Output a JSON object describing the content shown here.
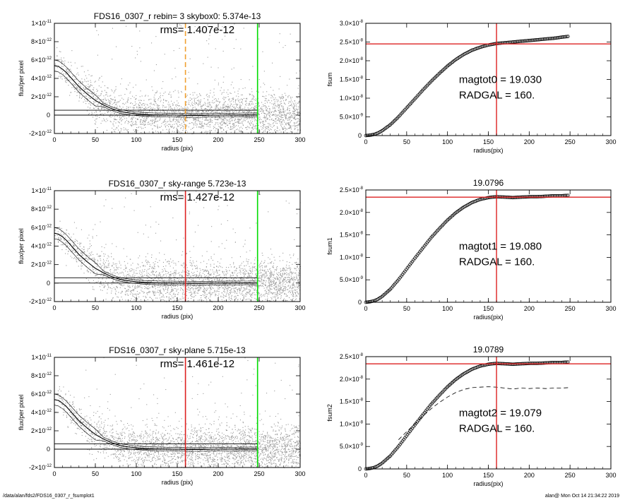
{
  "footer": {
    "path": "/data/alan/fds2/FDS16_0307_r_fsumplot1",
    "user_time": "alan@  Mon Oct 14 21:34:22 2019"
  },
  "colors": {
    "points": "#9a9a9a",
    "profile": "#000000",
    "sky_line": "#000000",
    "green_line": "#00dd00",
    "red_line": "#dd2222",
    "orange_dash": "#f0a030"
  },
  "chart_data": [
    {
      "type": "scatter",
      "title": "FDS16_0307_r rebin= 3    skybox0:  5.374e-13",
      "annotation": "rms= 1.407e-12",
      "xlabel": "radius (pix)",
      "ylabel": "flux/per pixel",
      "xlim": [
        0,
        300
      ],
      "ylim": [
        -2e-12,
        1e-11
      ],
      "xticks": [
        0,
        50,
        100,
        150,
        200,
        250,
        300
      ],
      "yticks": [
        {
          "value": -2e-12,
          "mant": "-2×10",
          "exp": "-12"
        },
        {
          "value": 0,
          "mant": "0",
          "exp": ""
        },
        {
          "value": 2e-12,
          "mant": "2×10",
          "exp": "-12"
        },
        {
          "value": 4e-12,
          "mant": "4×10",
          "exp": "-12"
        },
        {
          "value": 6e-12,
          "mant": "6×10",
          "exp": "-12"
        },
        {
          "value": 8e-12,
          "mant": "8×10",
          "exp": "-12"
        },
        {
          "value": 1e-11,
          "mant": "1×10",
          "exp": "-11"
        }
      ],
      "sky_levels": [
        0,
        5.374e-13
      ],
      "vlines": [
        {
          "x": 160,
          "style": "orange-dashed"
        },
        {
          "x": 248,
          "style": "green"
        }
      ],
      "profile": {
        "x": [
          0,
          5,
          10,
          15,
          20,
          25,
          30,
          40,
          50,
          60,
          70,
          80,
          90,
          100,
          110,
          120,
          130,
          140,
          150,
          160,
          170,
          180,
          190,
          200,
          210,
          220,
          230,
          240,
          248
        ],
        "y": [
          5.4e-12,
          5.3e-12,
          5e-12,
          4.6e-12,
          4.1e-12,
          3.6e-12,
          3.1e-12,
          2.3e-12,
          1.6e-12,
          1.1e-12,
          7e-13,
          4e-13,
          2.5e-13,
          1.5e-13,
          8e-14,
          4e-14,
          2e-14,
          1e-14,
          0,
          -2e-14,
          -3e-14,
          -3e-14,
          -1e-14,
          0,
          1e-14,
          1e-14,
          2e-14,
          2e-14,
          2e-14
        ]
      }
    },
    {
      "type": "scatter",
      "title": "FDS16_0307_r sky-range  5.723e-13",
      "annotation": "rms= 1.427e-12",
      "xlabel": "radius (pix)",
      "ylabel": "flux/per pixel",
      "xlim": [
        0,
        300
      ],
      "ylim": [
        -2e-12,
        1e-11
      ],
      "xticks": [
        0,
        50,
        100,
        150,
        200,
        250,
        300
      ],
      "yticks": [
        {
          "value": -2e-12,
          "mant": "-2×10",
          "exp": "-12"
        },
        {
          "value": 0,
          "mant": "0",
          "exp": ""
        },
        {
          "value": 2e-12,
          "mant": "2×10",
          "exp": "-12"
        },
        {
          "value": 4e-12,
          "mant": "4×10",
          "exp": "-12"
        },
        {
          "value": 6e-12,
          "mant": "6×10",
          "exp": "-12"
        },
        {
          "value": 8e-12,
          "mant": "8×10",
          "exp": "-12"
        },
        {
          "value": 1e-11,
          "mant": "1×10",
          "exp": "-11"
        }
      ],
      "sky_levels": [
        0,
        5.723e-13
      ],
      "vlines": [
        {
          "x": 160,
          "style": "red"
        },
        {
          "x": 248,
          "style": "green"
        }
      ],
      "profile": {
        "x": [
          0,
          5,
          10,
          15,
          20,
          25,
          30,
          40,
          50,
          60,
          70,
          80,
          90,
          100,
          110,
          120,
          130,
          140,
          150,
          160,
          170,
          180,
          190,
          200,
          210,
          220,
          230,
          240,
          248
        ],
        "y": [
          5.4e-12,
          5.3e-12,
          5e-12,
          4.6e-12,
          4.1e-12,
          3.6e-12,
          3.1e-12,
          2.3e-12,
          1.6e-12,
          1.1e-12,
          7e-13,
          4e-13,
          2.5e-13,
          1.5e-13,
          8e-14,
          4e-14,
          2e-14,
          1e-14,
          0,
          -2e-14,
          -3e-14,
          -3e-14,
          -1e-14,
          0,
          1e-14,
          1e-14,
          2e-14,
          2e-14,
          2e-14
        ]
      }
    },
    {
      "type": "scatter",
      "title": "FDS16_0307_r sky-plane  5.715e-13",
      "annotation": "rms= 1.461e-12",
      "xlabel": "radius (pix)",
      "ylabel": "flux/per pixel",
      "xlim": [
        0,
        300
      ],
      "ylim": [
        -2e-12,
        1e-11
      ],
      "xticks": [
        0,
        50,
        100,
        150,
        200,
        250,
        300
      ],
      "yticks": [
        {
          "value": -2e-12,
          "mant": "-2×10",
          "exp": "-12"
        },
        {
          "value": 0,
          "mant": "0",
          "exp": ""
        },
        {
          "value": 2e-12,
          "mant": "2×10",
          "exp": "-12"
        },
        {
          "value": 4e-12,
          "mant": "4×10",
          "exp": "-12"
        },
        {
          "value": 6e-12,
          "mant": "6×10",
          "exp": "-12"
        },
        {
          "value": 8e-12,
          "mant": "8×10",
          "exp": "-12"
        },
        {
          "value": 1e-11,
          "mant": "1×10",
          "exp": "-11"
        }
      ],
      "sky_levels": [
        0,
        5.715e-13
      ],
      "vlines": [
        {
          "x": 160,
          "style": "red"
        },
        {
          "x": 248,
          "style": "green"
        }
      ],
      "profile": {
        "x": [
          0,
          5,
          10,
          15,
          20,
          25,
          30,
          40,
          50,
          60,
          70,
          80,
          90,
          100,
          110,
          120,
          130,
          140,
          150,
          160,
          170,
          180,
          190,
          200,
          210,
          220,
          230,
          240,
          248
        ],
        "y": [
          5.4e-12,
          5.3e-12,
          5e-12,
          4.6e-12,
          4.1e-12,
          3.6e-12,
          3.1e-12,
          2.3e-12,
          1.6e-12,
          1.1e-12,
          7e-13,
          4e-13,
          2.5e-13,
          1.5e-13,
          8e-14,
          4e-14,
          2e-14,
          1e-14,
          0,
          -2e-14,
          -3e-14,
          -3e-14,
          -1e-14,
          0,
          1e-14,
          1e-14,
          2e-14,
          2e-14,
          2e-14
        ]
      }
    },
    {
      "type": "line",
      "title": "",
      "xlabel": "radius(pix)",
      "ylabel": "fsum",
      "xlim": [
        0,
        300
      ],
      "ylim": [
        0,
        3e-08
      ],
      "xticks": [
        0,
        50,
        100,
        150,
        200,
        250,
        300
      ],
      "yticks": [
        {
          "value": 0,
          "mant": "0",
          "exp": ""
        },
        {
          "value": 5e-09,
          "mant": "5.0×10",
          "exp": "-9"
        },
        {
          "value": 1e-08,
          "mant": "1.0×10",
          "exp": "-8"
        },
        {
          "value": 1.5e-08,
          "mant": "1.5×10",
          "exp": "-8"
        },
        {
          "value": 2e-08,
          "mant": "2.0×10",
          "exp": "-8"
        },
        {
          "value": 2.5e-08,
          "mant": "2.5×10",
          "exp": "-8"
        },
        {
          "value": 3e-08,
          "mant": "3.0×10",
          "exp": "-8"
        }
      ],
      "annotations": [
        "magtot0 =  19.030",
        "RADGAL =    160."
      ],
      "crosshair": {
        "x": 160,
        "y": 2.45e-08
      },
      "curve": {
        "x": [
          0,
          5,
          10,
          15,
          20,
          30,
          40,
          50,
          60,
          70,
          80,
          90,
          100,
          110,
          120,
          130,
          140,
          150,
          160,
          170,
          180,
          190,
          200,
          210,
          220,
          230,
          240,
          248
        ],
        "y": [
          0,
          1e-10,
          3e-10,
          7e-10,
          1.3e-09,
          2.9e-09,
          5e-09,
          7.4e-09,
          9.8e-09,
          1.22e-08,
          1.45e-08,
          1.66e-08,
          1.86e-08,
          2.03e-08,
          2.17e-08,
          2.28e-08,
          2.36e-08,
          2.42e-08,
          2.46e-08,
          2.48e-08,
          2.5e-08,
          2.52e-08,
          2.54e-08,
          2.56e-08,
          2.58e-08,
          2.6e-08,
          2.63e-08,
          2.65e-08
        ]
      }
    },
    {
      "type": "line",
      "title": "19.0796",
      "xlabel": "radius(pix)",
      "ylabel": "fsum1",
      "xlim": [
        0,
        300
      ],
      "ylim": [
        0,
        2.5e-08
      ],
      "xticks": [
        0,
        50,
        100,
        150,
        200,
        250,
        300
      ],
      "yticks": [
        {
          "value": 0,
          "mant": "0",
          "exp": ""
        },
        {
          "value": 5e-09,
          "mant": "5.0×10",
          "exp": "-9"
        },
        {
          "value": 1e-08,
          "mant": "1.0×10",
          "exp": "-8"
        },
        {
          "value": 1.5e-08,
          "mant": "1.5×10",
          "exp": "-8"
        },
        {
          "value": 2e-08,
          "mant": "2.0×10",
          "exp": "-8"
        },
        {
          "value": 2.5e-08,
          "mant": "2.5×10",
          "exp": "-8"
        }
      ],
      "annotations": [
        "magtot1 =  19.080",
        "RADGAL =    160."
      ],
      "crosshair": {
        "x": 160,
        "y": 2.34e-08
      },
      "curve": {
        "x": [
          0,
          5,
          10,
          15,
          20,
          30,
          40,
          50,
          60,
          70,
          80,
          90,
          100,
          110,
          120,
          130,
          140,
          150,
          160,
          170,
          180,
          190,
          200,
          210,
          220,
          230,
          240,
          248
        ],
        "y": [
          0,
          1e-10,
          3e-10,
          7e-10,
          1.3e-09,
          2.9e-09,
          5e-09,
          7.4e-09,
          9.8e-09,
          1.21e-08,
          1.44e-08,
          1.64e-08,
          1.83e-08,
          1.99e-08,
          2.12e-08,
          2.22e-08,
          2.29e-08,
          2.33e-08,
          2.35e-08,
          2.34e-08,
          2.33e-08,
          2.34e-08,
          2.35e-08,
          2.35e-08,
          2.36e-08,
          2.37e-08,
          2.37e-08,
          2.38e-08
        ]
      }
    },
    {
      "type": "line",
      "title": "19.0789",
      "xlabel": "radius(pix)",
      "ylabel": "fsum2",
      "xlim": [
        0,
        300
      ],
      "ylim": [
        0,
        2.5e-08
      ],
      "xticks": [
        0,
        50,
        100,
        150,
        200,
        250,
        300
      ],
      "yticks": [
        {
          "value": 0,
          "mant": "0",
          "exp": ""
        },
        {
          "value": 5e-09,
          "mant": "5.0×10",
          "exp": "-9"
        },
        {
          "value": 1e-08,
          "mant": "1.0×10",
          "exp": "-8"
        },
        {
          "value": 1.5e-08,
          "mant": "1.5×10",
          "exp": "-8"
        },
        {
          "value": 2e-08,
          "mant": "2.0×10",
          "exp": "-8"
        },
        {
          "value": 2.5e-08,
          "mant": "2.5×10",
          "exp": "-8"
        }
      ],
      "annotations": [
        "magtot2 =  19.079",
        "RADGAL =    160."
      ],
      "crosshair": {
        "x": 160,
        "y": 2.34e-08
      },
      "curve": {
        "x": [
          0,
          5,
          10,
          15,
          20,
          30,
          40,
          50,
          60,
          70,
          80,
          90,
          100,
          110,
          120,
          130,
          140,
          150,
          160,
          170,
          180,
          190,
          200,
          210,
          220,
          230,
          240,
          248
        ],
        "y": [
          0,
          1e-10,
          3e-10,
          7e-10,
          1.3e-09,
          2.9e-09,
          5e-09,
          7.4e-09,
          9.8e-09,
          1.21e-08,
          1.44e-08,
          1.64e-08,
          1.83e-08,
          1.99e-08,
          2.12e-08,
          2.22e-08,
          2.29e-08,
          2.33e-08,
          2.35e-08,
          2.34e-08,
          2.33e-08,
          2.34e-08,
          2.35e-08,
          2.35e-08,
          2.36e-08,
          2.37e-08,
          2.37e-08,
          2.38e-08
        ]
      },
      "dashed_curve": {
        "x": [
          40,
          50,
          60,
          70,
          80,
          90,
          100,
          110,
          120,
          130,
          140,
          150,
          160,
          170,
          180,
          190,
          200,
          210,
          220,
          230,
          240,
          248
        ],
        "y": [
          6.5e-09,
          8.3e-09,
          1e-08,
          1.18e-08,
          1.34e-08,
          1.48e-08,
          1.6e-08,
          1.7e-08,
          1.77e-08,
          1.81e-08,
          1.82e-08,
          1.83e-08,
          1.82e-08,
          1.8e-08,
          1.78e-08,
          1.8e-08,
          1.79e-08,
          1.8e-08,
          1.79e-08,
          1.8e-08,
          1.8e-08,
          1.81e-08
        ]
      }
    }
  ]
}
